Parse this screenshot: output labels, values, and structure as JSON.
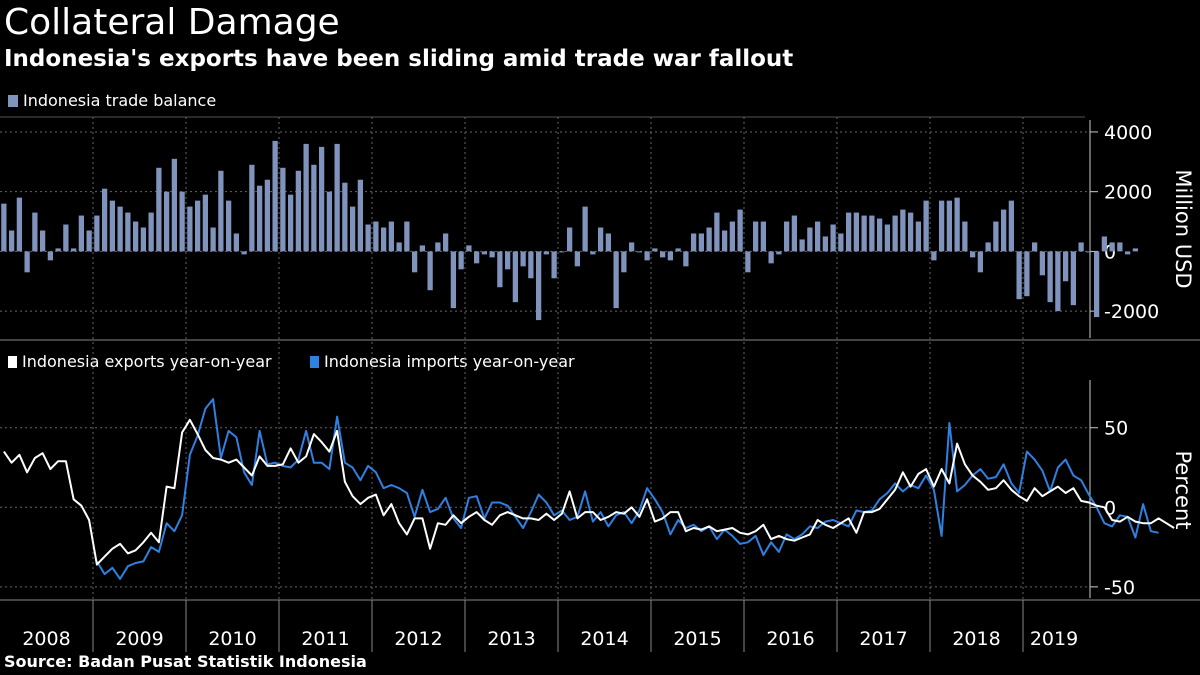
{
  "title": "Collateral Damage",
  "subtitle": "Indonesia's exports have been sliding amid trade war fallout",
  "source": "Source: Badan Pusat Statistik Indonesia",
  "colors": {
    "background": "#000000",
    "balance_bar": "#7f93bd",
    "exports_line": "#ffffff",
    "imports_line": "#2f80e0",
    "grid": "#666666"
  },
  "chart_data": [
    {
      "type": "bar",
      "legend": [
        "Indonesia trade balance"
      ],
      "ylabel": "Million USD",
      "ylim": [
        -2900,
        4400
      ],
      "yticks": [
        4000,
        2000,
        0,
        -2000
      ],
      "ytick_labels": [
        "4000",
        "2000",
        "0",
        "-2000"
      ],
      "x_start": "2008-01",
      "frequency": "monthly",
      "series": [
        {
          "name": "Indonesia trade balance",
          "values": [
            1600,
            700,
            1800,
            -700,
            1300,
            700,
            -300,
            100,
            900,
            100,
            1200,
            700,
            1200,
            2100,
            1700,
            1500,
            1300,
            1000,
            800,
            1300,
            2800,
            2000,
            3100,
            2000,
            1500,
            1700,
            1900,
            800,
            2700,
            1700,
            600,
            -100,
            2900,
            2200,
            2400,
            3700,
            2800,
            1900,
            2700,
            3600,
            2900,
            3500,
            2000,
            3600,
            2300,
            1500,
            2400,
            900,
            1000,
            800,
            1000,
            300,
            1000,
            -700,
            200,
            -1300,
            300,
            600,
            -1900,
            -600,
            200,
            -400,
            -100,
            -200,
            -1200,
            -600,
            -1700,
            -500,
            -900,
            -2300,
            -100,
            -900,
            0,
            800,
            -500,
            1500,
            -100,
            800,
            600,
            -1900,
            -700,
            300,
            0,
            -300,
            100,
            -200,
            -300,
            100,
            -500,
            600,
            600,
            800,
            1300,
            700,
            1000,
            1400,
            -700,
            1000,
            1000,
            -400,
            -100,
            1000,
            1200,
            400,
            800,
            1000,
            500,
            900,
            600,
            1300,
            1300,
            1200,
            1200,
            1100,
            900,
            1200,
            1400,
            1300,
            1000,
            1700,
            -300,
            1700,
            1700,
            1800,
            1000,
            -200,
            -700,
            300,
            1000,
            1400,
            1700,
            -1600,
            -1500,
            300,
            -800,
            -1700,
            -2000,
            -1000,
            -1800,
            300,
            0,
            -2200,
            500,
            300,
            300,
            -100,
            100
          ]
        }
      ]
    },
    {
      "type": "line",
      "legend": [
        "Indonesia exports year-on-year",
        "Indonesia imports year-on-year"
      ],
      "ylabel": "Percent",
      "ylim": [
        -57,
        80
      ],
      "yticks": [
        50,
        0,
        -50
      ],
      "ytick_labels": [
        "50",
        "0",
        "-50"
      ],
      "x_start": "2008-01",
      "frequency": "monthly",
      "series": [
        {
          "name": "Indonesia exports year-on-year",
          "values": [
            35,
            28,
            33,
            22,
            31,
            34,
            24,
            29,
            29,
            5,
            1,
            -8,
            -36,
            -31,
            -26,
            -23,
            -29,
            -27,
            -22,
            -16,
            -22,
            13,
            12,
            47,
            55,
            46,
            36,
            31,
            30,
            28,
            30,
            25,
            20,
            32,
            26,
            26,
            27,
            37,
            28,
            32,
            46,
            41,
            35,
            48,
            16,
            7,
            2,
            6,
            8,
            -5,
            2,
            -10,
            -17,
            -7,
            -7,
            -26,
            -10,
            -11,
            -5,
            -10,
            -6,
            -3,
            -8,
            -11,
            -5,
            -3,
            -5,
            -7,
            -7,
            -8,
            -4,
            -8,
            -4,
            10,
            -7,
            -3,
            -3,
            -8,
            -6,
            -3,
            -4,
            0,
            -6,
            5,
            -9,
            -7,
            -3,
            -3,
            -15,
            -13,
            -14,
            -12,
            -15,
            -14,
            -13,
            -16,
            -17,
            -15,
            -11,
            -20,
            -18,
            -20,
            -21,
            -19,
            -17,
            -8,
            -11,
            -13,
            -10,
            -7,
            -16,
            -3,
            -3,
            -1,
            5,
            11,
            22,
            13,
            21,
            24,
            13,
            24,
            15,
            40,
            27,
            20,
            16,
            11,
            12,
            17,
            11,
            7,
            4,
            12,
            7,
            10,
            13,
            9,
            12,
            4,
            3,
            1,
            0,
            -8,
            -9,
            -6,
            -9,
            -10,
            -10,
            -7,
            -10,
            -13
          ]
        },
        {
          "name": "Indonesia imports year-on-year",
          "values": null
        }
      ]
    }
  ],
  "chart_x_axis": {
    "years": [
      "2008",
      "2009",
      "2010",
      "2011",
      "2012",
      "2013",
      "2014",
      "2015",
      "2016",
      "2017",
      "2018",
      "2019"
    ]
  },
  "imports_values": [
    null,
    null,
    null,
    null,
    null,
    null,
    null,
    null,
    null,
    null,
    null,
    null,
    -34,
    -42,
    -38,
    -45,
    -37,
    -35,
    -34,
    -25,
    -28,
    -10,
    -15,
    -5,
    33,
    45,
    62,
    68,
    31,
    48,
    44,
    22,
    14,
    48,
    27,
    28,
    26,
    25,
    30,
    48,
    28,
    28,
    24,
    57,
    28,
    25,
    17,
    26,
    22,
    12,
    14,
    12,
    9,
    -6,
    11,
    -3,
    -1,
    6,
    -7,
    -13,
    6,
    7,
    -7,
    3,
    3,
    1,
    -6,
    -13,
    -3,
    8,
    3,
    -5,
    -2,
    -8,
    -6,
    10,
    -9,
    -3,
    -12,
    -5,
    -3,
    -10,
    -2,
    12,
    5,
    -3,
    -17,
    -8,
    -13,
    -11,
    -15,
    -12,
    -20,
    -14,
    -18,
    -23,
    -22,
    -18,
    -30,
    -22,
    -28,
    -17,
    -20,
    -17,
    -12,
    -13,
    -9,
    -8,
    -10,
    -12,
    -2,
    -3,
    -2,
    5,
    9,
    15,
    10,
    14,
    12,
    20,
    11,
    -18,
    53,
    10,
    14,
    20,
    24,
    18,
    19,
    27,
    15,
    9,
    35,
    30,
    23,
    10,
    25,
    30,
    20,
    17,
    8,
    0,
    -10,
    -12,
    -5,
    -6,
    -19,
    2,
    -15,
    -16
  ]
}
